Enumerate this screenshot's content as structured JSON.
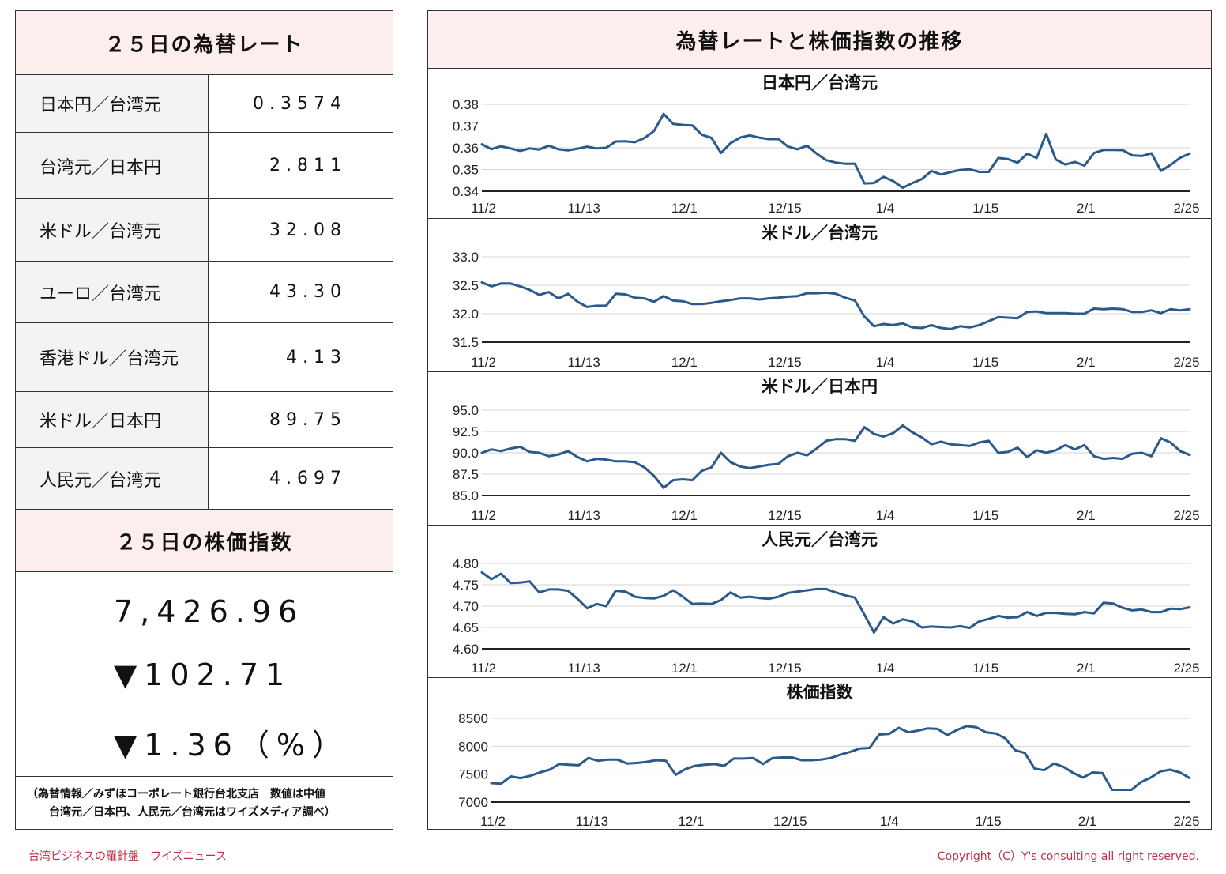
{
  "rates_panel": {
    "title": "２５日の為替レート",
    "rows": [
      {
        "label": "日本円／台湾元",
        "value": "0.3574"
      },
      {
        "label": "台湾元／日本円",
        "value": "2.811"
      },
      {
        "label": "米ドル／台湾元",
        "value": "32.08"
      },
      {
        "label": "ユーロ／台湾元",
        "value": "43.30"
      },
      {
        "label": "香港ドル／台湾元",
        "value": "4.13"
      },
      {
        "label": "米ドル／日本円",
        "value": "89.75"
      },
      {
        "label": "人民元／台湾元",
        "value": "4.697"
      }
    ]
  },
  "stock_panel": {
    "title": "２５日の株価指数",
    "index": "7,426.96",
    "change": "▼102.71",
    "change_pct": "▼1.36（%）"
  },
  "note": {
    "line1": "（為替情報／みずほコーポレート銀行台北支店　数値は中値",
    "line2": "台湾元／日本円、人民元／台湾元はワイズメディア調べ）"
  },
  "charts_panel": {
    "title": "為替レートと株価指数の推移"
  },
  "footer": {
    "left": "台湾ビジネスの羅針盤　ワイズニュース",
    "right": "Copyright（C）Y's consulting all right reserved."
  },
  "colors": {
    "line": "#2a5a8c",
    "header_bg": "#fdeeee",
    "label_bg": "#f3f3f5",
    "footer": "#c0304a"
  },
  "chart_data": [
    {
      "type": "line",
      "title": "日本円／台湾元",
      "x_labels": [
        "11/2",
        "11/13",
        "12/1",
        "12/15",
        "1/4",
        "1/15",
        "2/1",
        "2/25"
      ],
      "y_ticks": [
        "0.34",
        "0.35",
        "0.36",
        "0.37",
        "0.38"
      ],
      "ylim": [
        0.34,
        0.38
      ],
      "series": [
        {
          "values": [
            0.3616,
            0.3594,
            0.3607,
            0.3597,
            0.3586,
            0.3597,
            0.3592,
            0.361,
            0.3593,
            0.3588,
            0.3596,
            0.3605,
            0.3597,
            0.36,
            0.3629,
            0.363,
            0.3626,
            0.3645,
            0.3677,
            0.3756,
            0.371,
            0.3705,
            0.3703,
            0.366,
            0.3646,
            0.3576,
            0.3621,
            0.3647,
            0.3657,
            0.3647,
            0.364,
            0.364,
            0.3606,
            0.3593,
            0.361,
            0.3573,
            0.3543,
            0.3532,
            0.3526,
            0.3527,
            0.3436,
            0.3438,
            0.3466,
            0.3447,
            0.3416,
            0.3437,
            0.3456,
            0.3493,
            0.3477,
            0.3488,
            0.3498,
            0.3501,
            0.3489,
            0.3489,
            0.3553,
            0.3548,
            0.3531,
            0.3573,
            0.3553,
            0.3664,
            0.3546,
            0.3523,
            0.3535,
            0.3518,
            0.3576,
            0.359,
            0.359,
            0.3589,
            0.3565,
            0.3562,
            0.3575,
            0.3494,
            0.3521,
            0.3554,
            0.3574
          ]
        }
      ]
    },
    {
      "type": "line",
      "title": "米ドル／台湾元",
      "x_labels": [
        "11/2",
        "11/13",
        "12/1",
        "12/15",
        "1/4",
        "1/15",
        "2/1",
        "2/25"
      ],
      "y_ticks": [
        "31.5",
        "32.0",
        "32.5",
        "33.0"
      ],
      "ylim": [
        31.5,
        33.0
      ],
      "series": [
        {
          "values": [
            32.55,
            32.48,
            32.53,
            32.53,
            32.48,
            32.42,
            32.33,
            32.38,
            32.27,
            32.35,
            32.21,
            32.12,
            32.14,
            32.14,
            32.35,
            32.34,
            32.28,
            32.27,
            32.21,
            32.31,
            32.23,
            32.22,
            32.17,
            32.17,
            32.19,
            32.22,
            32.24,
            32.27,
            32.27,
            32.25,
            32.27,
            32.28,
            32.3,
            32.31,
            32.36,
            32.36,
            32.37,
            32.35,
            32.28,
            32.23,
            31.95,
            31.78,
            31.82,
            31.8,
            31.83,
            31.76,
            31.75,
            31.8,
            31.75,
            31.73,
            31.78,
            31.76,
            31.8,
            31.87,
            31.94,
            31.93,
            31.92,
            32.03,
            32.04,
            32.01,
            32.01,
            32.01,
            32.0,
            32.0,
            32.09,
            32.08,
            32.09,
            32.08,
            32.03,
            32.03,
            32.06,
            32.01,
            32.08,
            32.06,
            32.08
          ]
        }
      ]
    },
    {
      "type": "line",
      "title": "米ドル／日本円",
      "x_labels": [
        "11/2",
        "11/13",
        "12/1",
        "12/15",
        "1/4",
        "1/15",
        "2/1",
        "2/25"
      ],
      "y_ticks": [
        "85.0",
        "87.5",
        "90.0",
        "92.5",
        "95.0"
      ],
      "ylim": [
        85.0,
        95.0
      ],
      "series": [
        {
          "values": [
            90.0,
            90.4,
            90.2,
            90.5,
            90.7,
            90.1,
            90.0,
            89.6,
            89.8,
            90.2,
            89.5,
            89.0,
            89.3,
            89.2,
            89.0,
            89.0,
            88.9,
            88.3,
            87.3,
            85.9,
            86.8,
            86.9,
            86.8,
            87.9,
            88.3,
            90.0,
            88.9,
            88.4,
            88.2,
            88.4,
            88.6,
            88.7,
            89.6,
            90.0,
            89.7,
            90.5,
            91.4,
            91.6,
            91.6,
            91.4,
            93.0,
            92.2,
            91.9,
            92.3,
            93.2,
            92.4,
            91.8,
            91.0,
            91.3,
            91.0,
            90.9,
            90.8,
            91.2,
            91.4,
            90.0,
            90.1,
            90.6,
            89.5,
            90.3,
            90.0,
            90.3,
            90.9,
            90.4,
            90.9,
            89.6,
            89.3,
            89.4,
            89.3,
            89.9,
            90.0,
            89.6,
            91.7,
            91.2,
            90.2,
            89.75
          ]
        }
      ]
    },
    {
      "type": "line",
      "title": "人民元／台湾元",
      "x_labels": [
        "11/2",
        "11/13",
        "12/1",
        "12/15",
        "1/4",
        "1/15",
        "2/1",
        "2/25"
      ],
      "y_ticks": [
        "4.60",
        "4.65",
        "4.70",
        "4.75",
        "4.80"
      ],
      "ylim": [
        4.6,
        4.8
      ],
      "series": [
        {
          "values": [
            4.779,
            4.763,
            4.776,
            4.754,
            4.755,
            4.758,
            4.732,
            4.739,
            4.739,
            4.736,
            4.717,
            4.695,
            4.705,
            4.7,
            4.736,
            4.734,
            4.722,
            4.719,
            4.718,
            4.724,
            4.737,
            4.722,
            4.705,
            4.706,
            4.705,
            4.714,
            4.732,
            4.72,
            4.722,
            4.719,
            4.717,
            4.722,
            4.731,
            4.734,
            4.737,
            4.74,
            4.74,
            4.732,
            4.725,
            4.72,
            4.68,
            4.638,
            4.674,
            4.659,
            4.669,
            4.664,
            4.65,
            4.652,
            4.651,
            4.65,
            4.653,
            4.649,
            4.664,
            4.67,
            4.677,
            4.673,
            4.674,
            4.686,
            4.677,
            4.684,
            4.684,
            4.682,
            4.681,
            4.686,
            4.683,
            4.708,
            4.706,
            4.696,
            4.69,
            4.692,
            4.686,
            4.686,
            4.694,
            4.693,
            4.697
          ]
        }
      ]
    },
    {
      "type": "line",
      "title": "株価指数",
      "x_labels": [
        "11/2",
        "11/13",
        "12/1",
        "12/15",
        "1/4",
        "1/15",
        "2/1",
        "2/25"
      ],
      "y_ticks": [
        "7000",
        "7500",
        "8000",
        "8500"
      ],
      "ylim": [
        7000,
        8500
      ],
      "series": [
        {
          "values": [
            7340,
            7330,
            7460,
            7430,
            7470,
            7530,
            7580,
            7680,
            7670,
            7660,
            7790,
            7740,
            7760,
            7760,
            7690,
            7700,
            7720,
            7750,
            7740,
            7490,
            7590,
            7650,
            7670,
            7680,
            7650,
            7780,
            7780,
            7790,
            7680,
            7790,
            7800,
            7800,
            7750,
            7750,
            7760,
            7790,
            7850,
            7900,
            7960,
            7970,
            8210,
            8220,
            8330,
            8250,
            8280,
            8320,
            8310,
            8200,
            8290,
            8360,
            8340,
            8250,
            8230,
            8140,
            7930,
            7880,
            7600,
            7570,
            7690,
            7630,
            7520,
            7440,
            7530,
            7520,
            7220,
            7220,
            7220,
            7360,
            7440,
            7550,
            7580,
            7530,
            7430
          ]
        }
      ]
    }
  ]
}
